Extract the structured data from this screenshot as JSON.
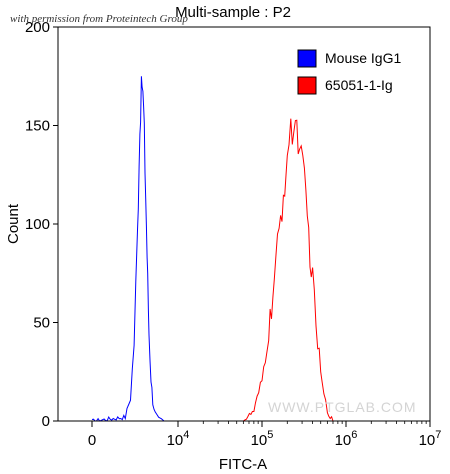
{
  "permission_note": "with permission from Proteintech Group",
  "watermark": "WWW.PTGLAB.COM",
  "chart_data": {
    "type": "line",
    "title": "Multi-sample : P2",
    "xlabel": "FITC-A",
    "ylabel": "Count",
    "x_scale": "biexponential",
    "ylim": [
      0,
      200
    ],
    "y_ticks": [
      0,
      50,
      100,
      150,
      200
    ],
    "x_ticks": [
      {
        "label": "0",
        "exp": ""
      },
      {
        "label": "10",
        "exp": "4"
      },
      {
        "label": "10",
        "exp": "5"
      },
      {
        "label": "10",
        "exp": "6"
      },
      {
        "label": "10",
        "exp": "7"
      }
    ],
    "legend_position": "top-right",
    "grid": false,
    "series": [
      {
        "name": "Mouse IgG1",
        "color": "#0000ff",
        "x": [
          0,
          1500,
          2000,
          2400,
          2800,
          3000,
          3200,
          3400,
          3600,
          3800,
          4000,
          4200,
          4400,
          4700,
          5000,
          5400,
          6000,
          7000
        ],
        "y": [
          0,
          2,
          12,
          40,
          95,
          135,
          160,
          172,
          158,
          130,
          100,
          70,
          45,
          22,
          10,
          4,
          1,
          0
        ]
      },
      {
        "name": "65051-1-Ig",
        "color": "#ff0000",
        "x": [
          60000,
          80000,
          100000,
          120000,
          140000,
          160000,
          180000,
          200000,
          220000,
          250000,
          280000,
          320000,
          360000,
          400000,
          460000,
          520000,
          600000,
          700000
        ],
        "y": [
          0,
          5,
          20,
          45,
          70,
          95,
          115,
          135,
          145,
          152,
          140,
          120,
          95,
          70,
          40,
          18,
          5,
          0
        ]
      }
    ]
  }
}
